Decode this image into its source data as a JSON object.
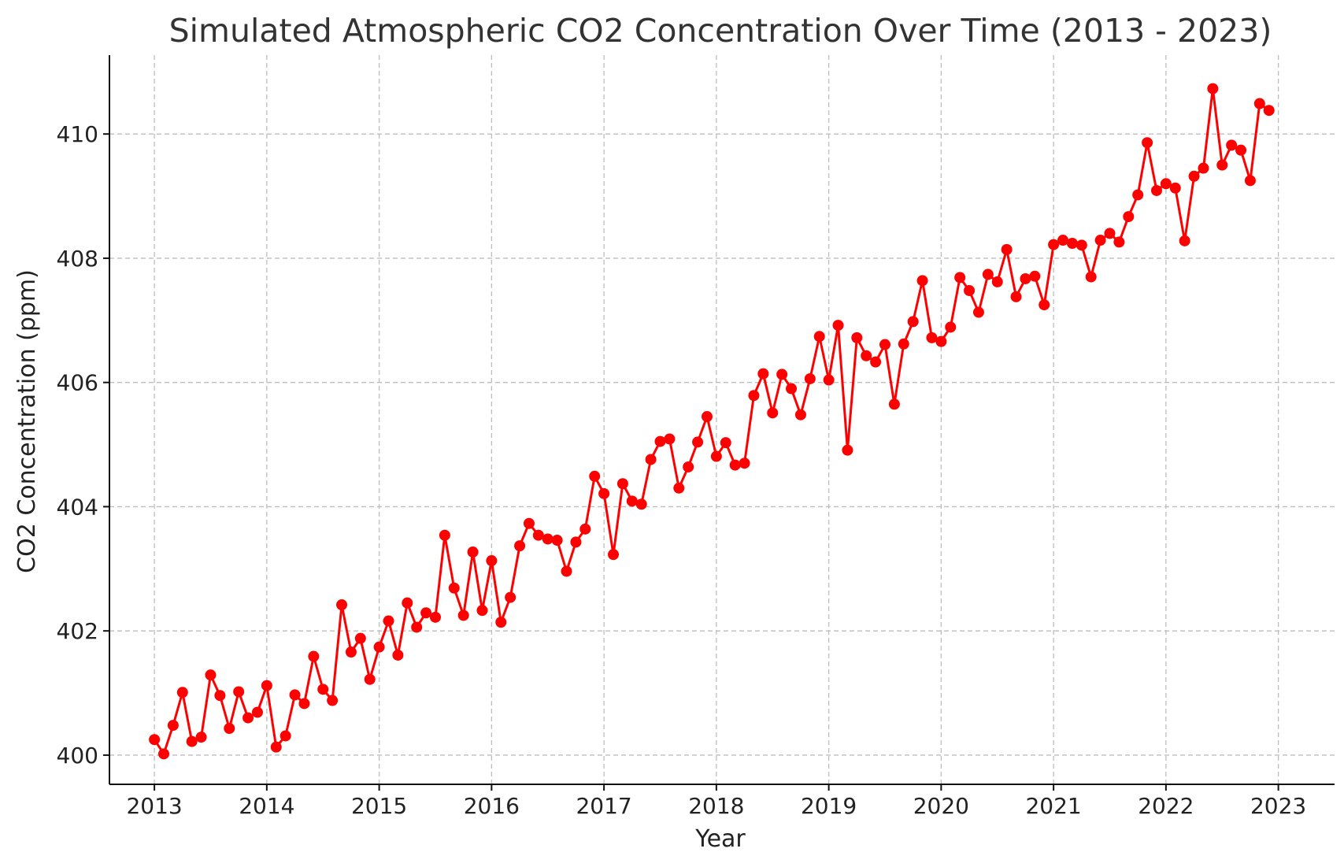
{
  "chart_data": {
    "type": "line",
    "title": "Simulated Atmospheric CO2 Concentration Over Time (2013 - 2023)",
    "xlabel": "Year",
    "ylabel": "CO2 Concentration (ppm)",
    "xlim": [
      2012.6,
      2023.5
    ],
    "ylim": [
      399.53,
      411.27
    ],
    "x_ticks": [
      2013,
      2014,
      2015,
      2016,
      2017,
      2018,
      2019,
      2020,
      2021,
      2022,
      2023
    ],
    "x_tick_labels": [
      "2013",
      "2014",
      "2015",
      "2016",
      "2017",
      "2018",
      "2019",
      "2020",
      "2021",
      "2022",
      "2023"
    ],
    "y_ticks": [
      400,
      402,
      404,
      406,
      408,
      410
    ],
    "y_tick_labels": [
      "400",
      "402",
      "404",
      "406",
      "408",
      "410"
    ],
    "grid": true,
    "series": [
      {
        "color": "#ff0000",
        "marker": "circle",
        "x_start": "2013-01",
        "x_step": "1 month",
        "values": [
          400.25,
          400.02,
          400.48,
          401.01,
          400.22,
          400.29,
          401.29,
          400.96,
          400.43,
          401.02,
          400.6,
          400.69,
          401.12,
          400.13,
          400.31,
          400.97,
          400.83,
          401.59,
          401.06,
          400.88,
          402.42,
          401.66,
          401.88,
          401.22,
          401.74,
          402.16,
          401.61,
          402.45,
          402.06,
          402.29,
          402.22,
          403.54,
          402.69,
          402.25,
          403.27,
          402.33,
          403.13,
          402.14,
          402.54,
          403.37,
          403.73,
          403.54,
          403.48,
          403.46,
          402.96,
          403.43,
          403.64,
          404.49,
          404.21,
          403.23,
          404.37,
          404.09,
          404.04,
          404.76,
          405.05,
          405.09,
          404.3,
          404.64,
          405.04,
          405.45,
          404.81,
          405.03,
          404.67,
          404.7,
          405.79,
          406.14,
          405.51,
          406.13,
          405.9,
          405.48,
          406.06,
          406.74,
          406.04,
          406.92,
          404.91,
          406.72,
          406.43,
          406.33,
          406.61,
          405.65,
          406.62,
          406.98,
          407.64,
          406.72,
          406.66,
          406.89,
          407.69,
          407.48,
          407.13,
          407.74,
          407.62,
          408.14,
          407.38,
          407.67,
          407.71,
          407.25,
          408.22,
          408.29,
          408.24,
          408.21,
          407.7,
          408.29,
          408.4,
          408.26,
          408.67,
          409.02,
          409.86,
          409.09,
          409.2,
          409.13,
          408.28,
          409.32,
          409.45,
          410.73,
          409.5,
          409.82,
          409.74,
          409.25,
          410.49,
          410.38
        ]
      }
    ]
  }
}
